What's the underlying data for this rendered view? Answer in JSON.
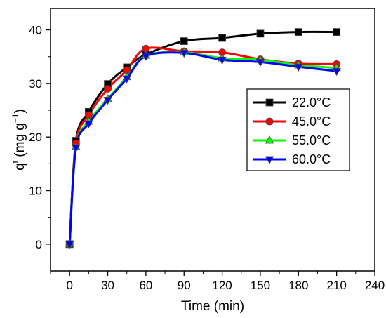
{
  "chart_data": {
    "type": "line",
    "xlabel": "Time (min)",
    "ylabel": "q^t (mg g^-1)",
    "ylabel_parts": {
      "base": "q",
      "sup": "t",
      "unit_open": " (mg g",
      "unit_sup": "−1",
      "unit_close": ")"
    },
    "xlim": [
      -15,
      240
    ],
    "ylim": [
      -5,
      44
    ],
    "x_ticks": [
      0,
      30,
      60,
      90,
      120,
      150,
      180,
      210,
      240
    ],
    "y_ticks": [
      0,
      10,
      20,
      30,
      40
    ],
    "x_tick_labels": [
      "0",
      "30",
      "60",
      "90",
      "120",
      "150",
      "180",
      "210",
      "240"
    ],
    "y_tick_labels": [
      "0",
      "10",
      "20",
      "30",
      "40"
    ],
    "grid": false,
    "legend_position": "right-middle",
    "x": [
      0,
      5,
      15,
      30,
      45,
      60,
      90,
      120,
      150,
      180,
      210
    ],
    "series": [
      {
        "name": "22.0°C",
        "color": "#000000",
        "marker": "square",
        "values": [
          0,
          19.3,
          24.7,
          29.9,
          33.0,
          35.4,
          37.9,
          38.5,
          39.3,
          39.6,
          39.6
        ]
      },
      {
        "name": "45.0°C",
        "color": "#ff0000",
        "marker": "circle",
        "values": [
          0,
          18.8,
          24.1,
          29.0,
          32.5,
          36.5,
          36.0,
          35.8,
          34.5,
          33.7,
          33.6
        ]
      },
      {
        "name": "55.0°C",
        "color": "#00ff00",
        "marker": "triangle-up",
        "values": [
          0,
          18.2,
          22.9,
          27.1,
          31.2,
          35.2,
          35.8,
          34.7,
          34.4,
          33.4,
          32.9
        ]
      },
      {
        "name": "60.0°C",
        "color": "#0000ff",
        "marker": "triangle-down",
        "values": [
          0,
          18.0,
          22.5,
          26.9,
          30.9,
          35.1,
          35.7,
          34.4,
          34.0,
          33.1,
          32.3
        ]
      }
    ]
  }
}
